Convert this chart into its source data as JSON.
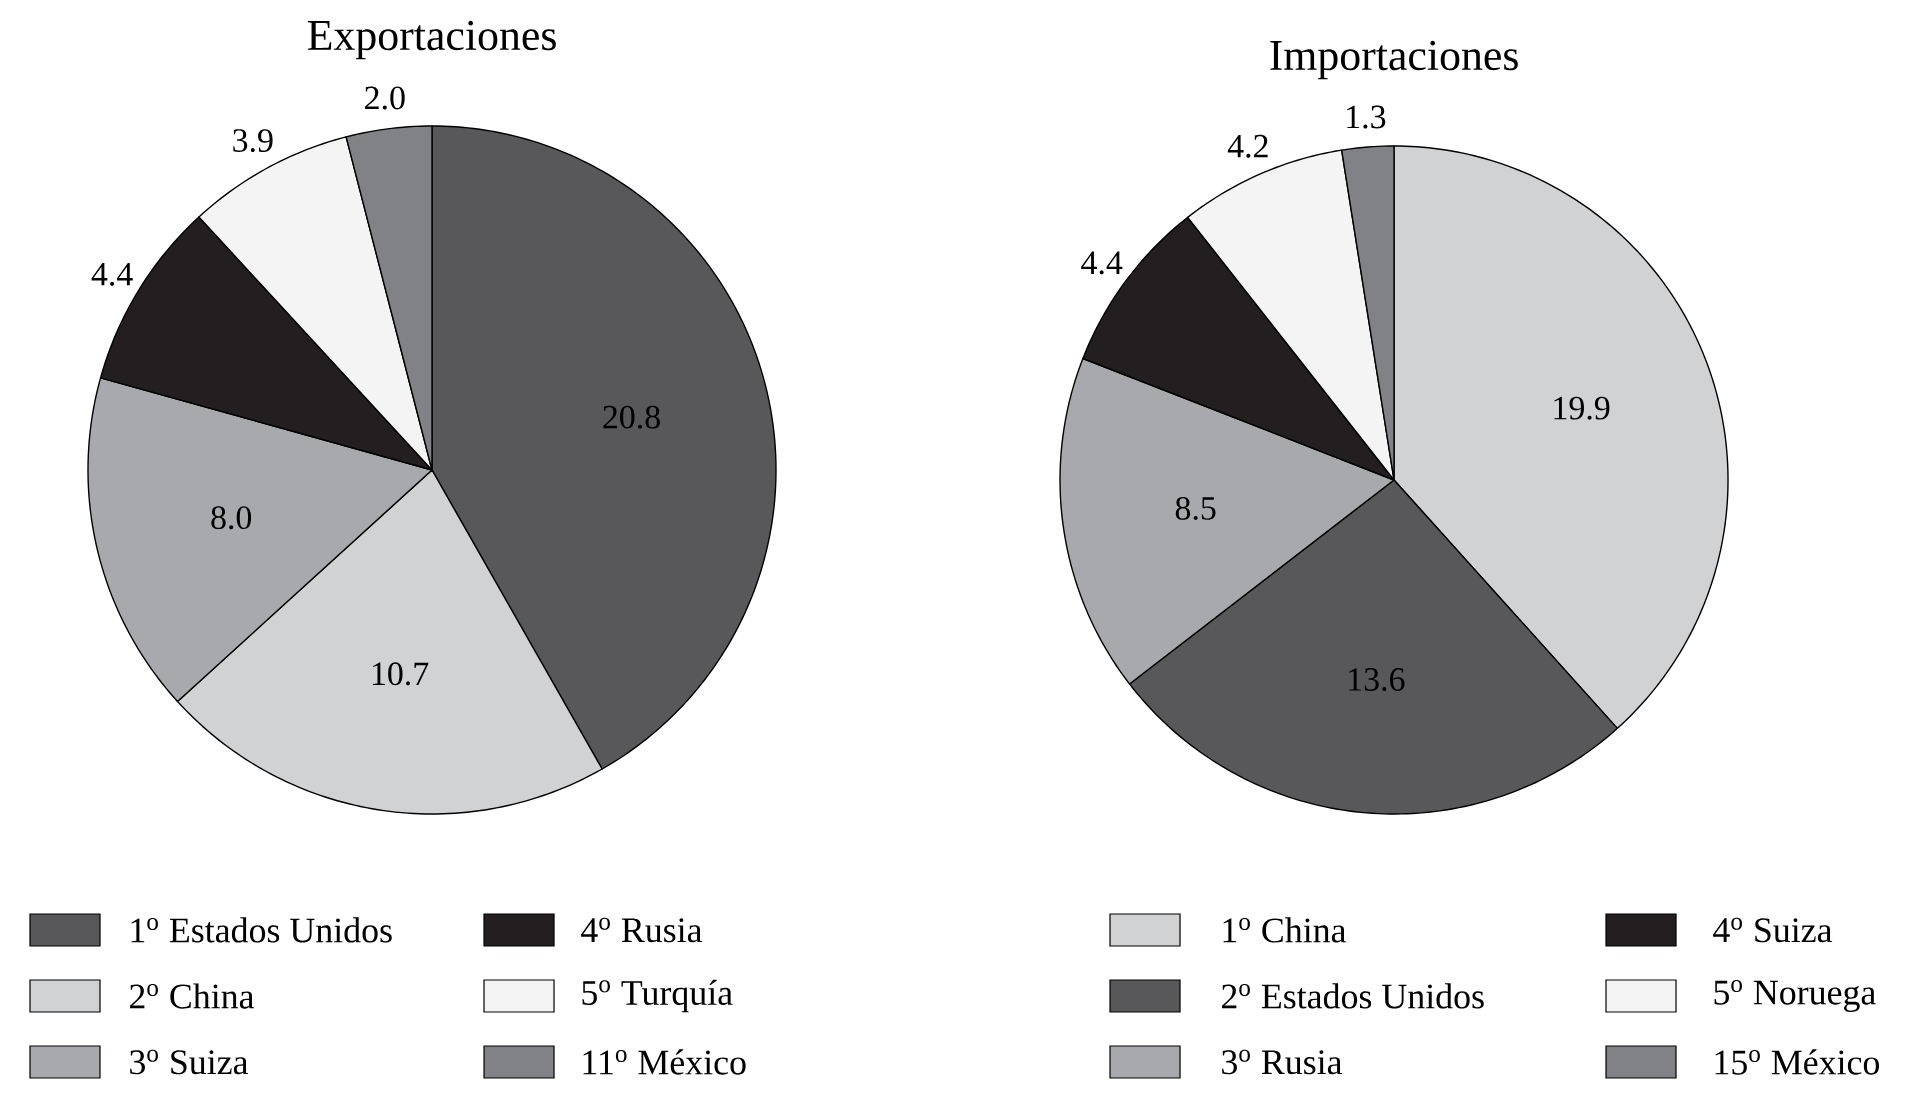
{
  "chart_data": [
    {
      "type": "pie",
      "title": "Exportaciones",
      "categories": [
        "1$^{o}$ Estados Unidos",
        "2$^{o}$ China",
        "3$^{o}$ Suiza",
        "4$^{o}$ Rusia",
        "5$^{o}$ Turquía",
        "11$^{o}$ México"
      ],
      "values": [
        20.8,
        10.7,
        8.0,
        4.4,
        3.9,
        2.0
      ],
      "value_labels": [
        "20.8",
        "10.7",
        "8.0",
        "4.4",
        "3.9",
        "2.0"
      ],
      "colors": [
        "#58585a",
        "#d1d2d4",
        "#a7a9ac",
        "#231f20",
        "#f4f4f5",
        "#808285"
      ],
      "legend": "bottom"
    },
    {
      "type": "pie",
      "title": "Importaciones",
      "categories": [
        "1$^{o}$ China",
        "2$^{o}$ Estados Unidos",
        "3$^{o}$ Rusia",
        "4$^{o}$ Suiza",
        "5$^{o}$ Noruega",
        "15$^{o}$ México"
      ],
      "values": [
        19.9,
        13.6,
        8.5,
        4.4,
        4.2,
        1.3
      ],
      "value_labels": [
        "19.9",
        "13.6",
        "8.5",
        "4.4",
        "4.2",
        "1.3"
      ],
      "colors": [
        "#d1d2d4",
        "#58585a",
        "#a7a9ac",
        "#231f20",
        "#f4f4f5",
        "#808285"
      ],
      "legend": "bottom"
    }
  ]
}
